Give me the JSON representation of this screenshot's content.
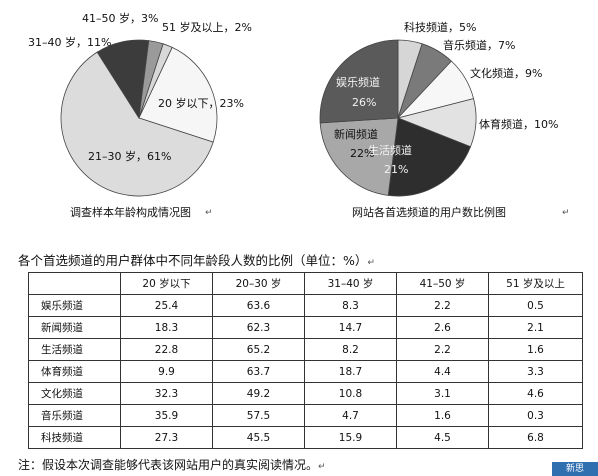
{
  "chart_data": [
    {
      "type": "pie",
      "caption": "调查样本年龄构成情况图",
      "slices": [
        {
          "label": "51 岁及以上，2%",
          "value": 2,
          "color": "#d8d8d8"
        },
        {
          "label": "20 岁以下，23%",
          "value": 23,
          "color": "#f6f6f6"
        },
        {
          "label": "21–30 岁，61%",
          "value": 61,
          "color": "#dcdcdc"
        },
        {
          "label": "31–40 岁，11%",
          "value": 11,
          "color": "#3c3c3c"
        },
        {
          "label": "41–50 岁，3%",
          "value": 3,
          "color": "#9a9a9a"
        }
      ]
    },
    {
      "type": "pie",
      "caption": "网站各首选频道的用户数比例图",
      "slices": [
        {
          "label": "科技频道，5%",
          "value": 5,
          "color": "#d6d6d6"
        },
        {
          "label": "音乐频道，7%",
          "value": 7,
          "color": "#7a7a7a"
        },
        {
          "label": "文化频道，9%",
          "value": 9,
          "color": "#f7f7f7"
        },
        {
          "label": "体育频道，10%",
          "value": 10,
          "color": "#e2e2e2"
        },
        {
          "label": "生活频道",
          "value_label": "21%",
          "value": 21,
          "color": "#2e2e2e"
        },
        {
          "label": "新闻频道",
          "value_label": "22%",
          "value": 22,
          "color": "#a8a8a8"
        },
        {
          "label": "娱乐频道",
          "value_label": "26%",
          "value": 26,
          "color": "#5a5a5a"
        }
      ]
    },
    {
      "type": "table",
      "title": "各个首选频道的用户群体中不同年龄段人数的比例（单位：%）",
      "columns": [
        "",
        "20 岁以下",
        "20–30 岁",
        "31–40 岁",
        "41–50 岁",
        "51 岁及以上"
      ],
      "rows": [
        {
          "label": "娱乐频道",
          "values": [
            "25.4",
            "63.6",
            "8.3",
            "2.2",
            "0.5"
          ]
        },
        {
          "label": "新闻频道",
          "values": [
            "18.3",
            "62.3",
            "14.7",
            "2.6",
            "2.1"
          ]
        },
        {
          "label": "生活频道",
          "values": [
            "22.8",
            "65.2",
            "8.2",
            "2.2",
            "1.6"
          ]
        },
        {
          "label": "体育频道",
          "values": [
            "9.9",
            "63.7",
            "18.7",
            "4.4",
            "3.3"
          ]
        },
        {
          "label": "文化频道",
          "values": [
            "32.3",
            "49.2",
            "10.8",
            "3.1",
            "4.6"
          ]
        },
        {
          "label": "音乐频道",
          "values": [
            "35.9",
            "57.5",
            "4.7",
            "1.6",
            "0.3"
          ]
        },
        {
          "label": "科技频道",
          "values": [
            "27.3",
            "45.5",
            "15.9",
            "4.5",
            "6.8"
          ]
        }
      ]
    }
  ],
  "note": "注：假设本次调查能够代表该网站用户的真实阅读情况。",
  "return_mark": "↵",
  "badge": "新思"
}
